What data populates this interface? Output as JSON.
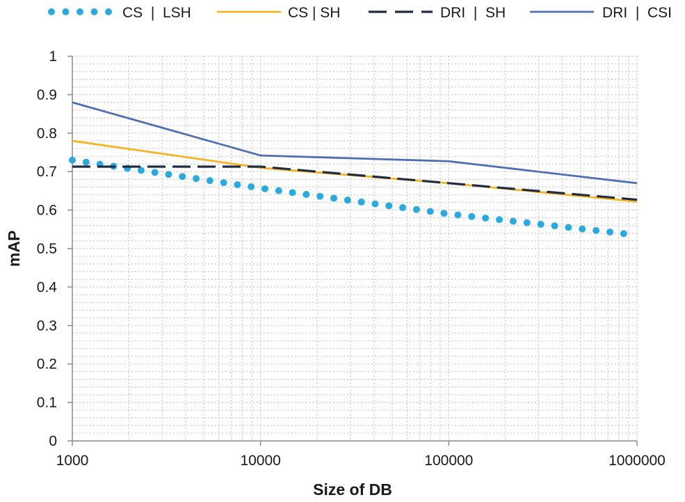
{
  "chart_data": {
    "type": "line",
    "title": "",
    "xlabel": "Size of DB",
    "ylabel": "mAP",
    "xscale": "log",
    "xlim": [
      1000,
      1000000
    ],
    "ylim": [
      0,
      1
    ],
    "x_ticks": [
      "1000",
      "10000",
      "100000",
      "1000000"
    ],
    "y_ticks": [
      "0",
      "0.1",
      "0.2",
      "0.3",
      "0.4",
      "0.5",
      "0.6",
      "0.7",
      "0.8",
      "0.9",
      "1"
    ],
    "grid": "dotted, major and minor",
    "legend_position": "top",
    "series": [
      {
        "name": "CS  |  LSH",
        "style": "dotted",
        "color": "#29abe2",
        "x": [
          1000,
          10000,
          100000,
          1000000
        ],
        "values": [
          0.73,
          0.657,
          0.59,
          0.535
        ]
      },
      {
        "name": "CS | SH",
        "style": "solid",
        "color": "#f5b51f",
        "x": [
          1000,
          10000,
          100000,
          1000000
        ],
        "values": [
          0.78,
          0.71,
          0.67,
          0.622
        ]
      },
      {
        "name": "DRI  |  SH",
        "style": "dashed",
        "color": "#1f2a44",
        "x": [
          1000,
          10000,
          100000,
          1000000
        ],
        "values": [
          0.713,
          0.713,
          0.67,
          0.627
        ]
      },
      {
        "name": "DRI  |  CSI",
        "style": "solid",
        "color": "#4e6fb3",
        "x": [
          1000,
          10000,
          100000,
          1000000
        ],
        "values": [
          0.88,
          0.742,
          0.727,
          0.67
        ]
      }
    ]
  }
}
